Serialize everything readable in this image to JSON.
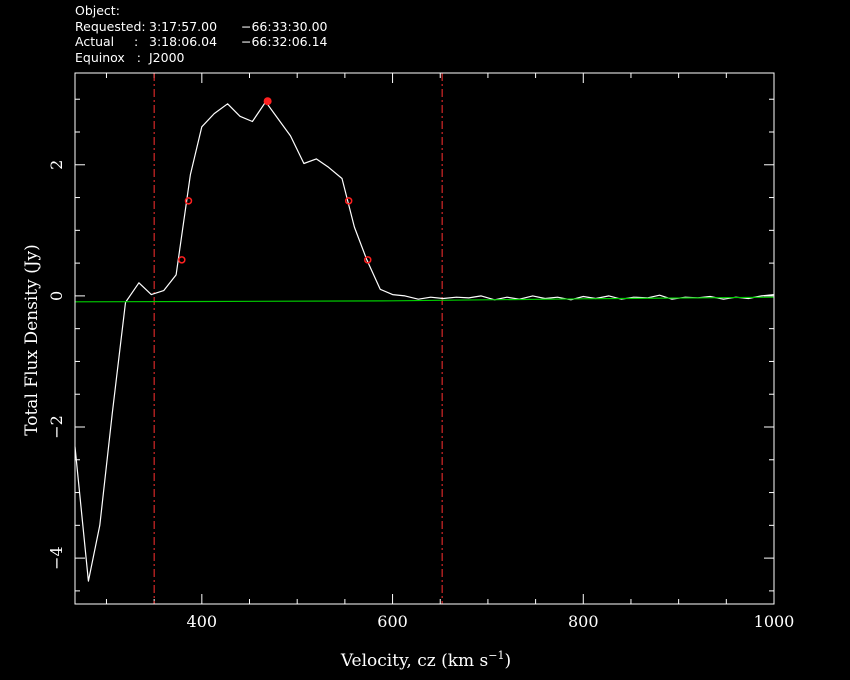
{
  "header": {
    "object_label": "Object:",
    "requested_label": "Requested:",
    "requested_ra": "3:17:57.00",
    "requested_dec": "−66:33:30.00",
    "actual_label": "Actual     :",
    "actual_ra": "3:18:06.04",
    "actual_dec": "−66:32:06.14",
    "equinox_label": "Equinox   :",
    "equinox_value": "J2000"
  },
  "colors": {
    "background": "#000000",
    "axes": "#ffffff",
    "spectrum": "#ffffff",
    "baseline": "#00cc00",
    "markers": "#ff2020",
    "range_lines": "#ff3030"
  },
  "chart_data": {
    "type": "line",
    "xlabel": "Velocity, cz (km s",
    "xlabel_sup": "−1",
    "xlabel_end": ")",
    "ylabel": "Total Flux Density (Jy)",
    "xlim": [
      267,
      1000
    ],
    "ylim": [
      -4.7,
      3.4
    ],
    "x_ticks": [
      400,
      600,
      800,
      1000
    ],
    "y_ticks": [
      -4,
      -2,
      0,
      2
    ],
    "x_tick_labels": [
      "400",
      "600",
      "800",
      "1000"
    ],
    "y_tick_labels": [
      "−4",
      "−2",
      "0",
      "2"
    ],
    "grid": false,
    "range_markers": [
      350,
      652
    ],
    "series": [
      {
        "style": "spectrum",
        "x": [
          267,
          281,
          293,
          306,
          320,
          334,
          347,
          360,
          373,
          388,
          400,
          413,
          427,
          440,
          453,
          467,
          480,
          493,
          507,
          520,
          533,
          547,
          560,
          573,
          587,
          600,
          613,
          627,
          640,
          653,
          667,
          680,
          693,
          707,
          720,
          733,
          747,
          760,
          773,
          787,
          800,
          813,
          827,
          840,
          853,
          867,
          880,
          893,
          907,
          920,
          933,
          947,
          960,
          973,
          987,
          1000
        ],
        "y": [
          -2.3,
          -4.35,
          -3.5,
          -1.8,
          -0.1,
          0.2,
          0.02,
          0.08,
          0.32,
          1.85,
          2.58,
          2.78,
          2.93,
          2.74,
          2.66,
          2.96,
          2.7,
          2.44,
          2.02,
          2.09,
          1.96,
          1.79,
          1.05,
          0.55,
          0.1,
          0.02,
          0.0,
          -0.05,
          -0.02,
          -0.04,
          -0.02,
          -0.03,
          0.0,
          -0.06,
          -0.02,
          -0.05,
          0.0,
          -0.04,
          -0.02,
          -0.06,
          -0.01,
          -0.04,
          0.0,
          -0.05,
          -0.02,
          -0.03,
          0.01,
          -0.05,
          -0.02,
          -0.03,
          -0.01,
          -0.05,
          -0.02,
          -0.04,
          0.0,
          0.02
        ]
      },
      {
        "style": "baseline",
        "x": [
          267,
          400,
          600,
          800,
          1000
        ],
        "y": [
          -0.09,
          -0.085,
          -0.075,
          -0.045,
          -0.02
        ]
      }
    ],
    "marked_points": [
      {
        "x": 379,
        "y": 0.55,
        "kind": "open"
      },
      {
        "x": 386,
        "y": 1.45,
        "kind": "open"
      },
      {
        "x": 469,
        "y": 2.97,
        "kind": "filled"
      },
      {
        "x": 554,
        "y": 1.45,
        "kind": "open"
      },
      {
        "x": 574,
        "y": 0.55,
        "kind": "open"
      }
    ]
  }
}
